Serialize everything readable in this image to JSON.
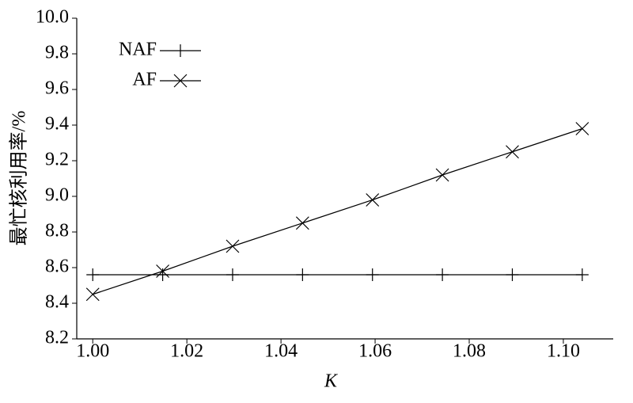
{
  "chart_data": {
    "type": "line",
    "x_label": "K",
    "y_label": "最忙核利用率/%",
    "x": [
      1.0,
      1.01486,
      1.02972,
      1.04458,
      1.05944,
      1.0743,
      1.08916,
      1.10402
    ],
    "series": [
      {
        "name": "NAF",
        "color": "#000000",
        "marker": "plus",
        "values": [
          8.56,
          8.56,
          8.56,
          8.56,
          8.56,
          8.56,
          8.56,
          8.56
        ]
      },
      {
        "name": "AF",
        "color": "#000000",
        "marker": "x",
        "values": [
          8.45,
          8.58,
          8.72,
          8.85,
          8.98,
          9.12,
          9.25,
          9.38
        ]
      }
    ],
    "xlim": [
      0.9966,
      1.1106
    ],
    "ylim": [
      8.2,
      10.0
    ],
    "xticks": [
      {
        "value": 1.0,
        "label": "1.00"
      },
      1.02,
      1.04,
      1.06,
      1.08,
      {
        "value": 1.1,
        "label": "1.10"
      }
    ],
    "yticks": [
      8.2,
      8.4,
      8.6,
      8.8,
      {
        "value": 9.0,
        "label": "9.0"
      },
      9.2,
      9.4,
      9.6,
      9.8,
      {
        "value": 10.0,
        "label": "10.0"
      }
    ],
    "legend": "top-left",
    "grid": false
  }
}
